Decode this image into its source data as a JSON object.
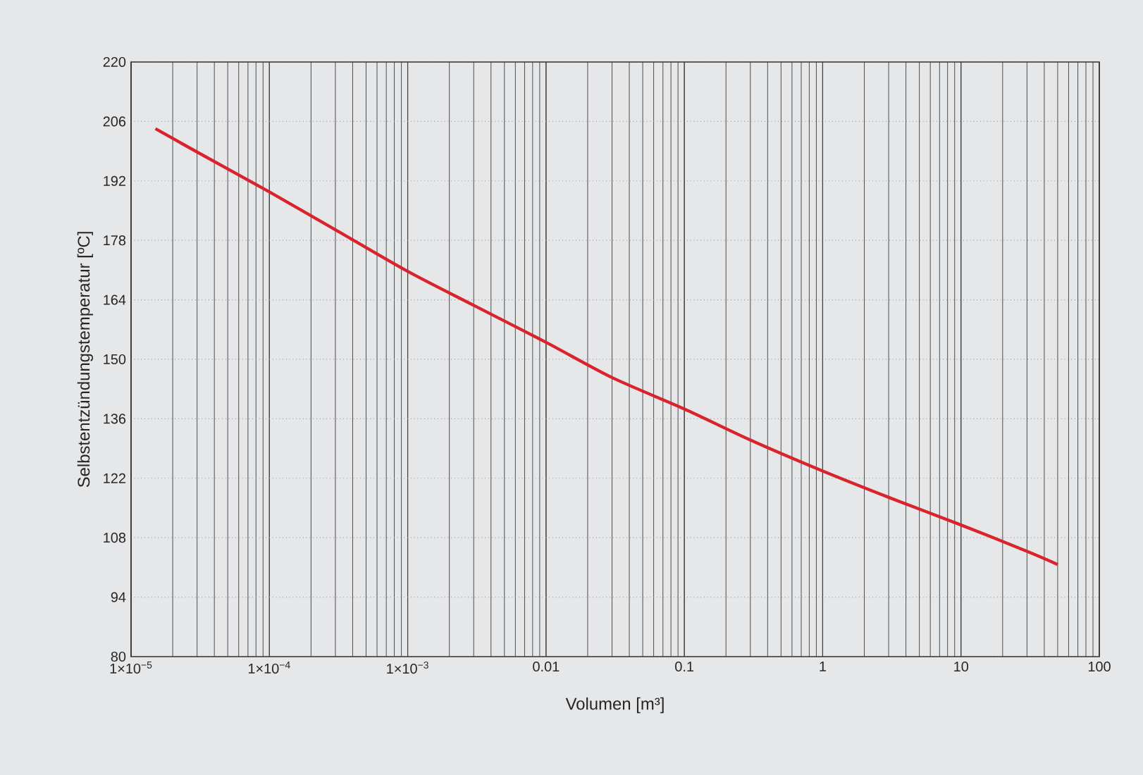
{
  "chart_data": {
    "type": "line",
    "xlabel": "Volumen [m³]",
    "ylabel": "Selbstentzündungstemperatur [ºC]",
    "log": "x",
    "grid": true,
    "marker": "none",
    "line_style": "solid",
    "xlim": [
      1e-05,
      100
    ],
    "ylim": [
      80,
      220
    ],
    "xticks": [
      {
        "value": 1e-05,
        "label": "1×10$^{−5}$"
      },
      {
        "value": 0.0001,
        "label": "1×10$^{−4}$"
      },
      {
        "value": 0.001,
        "label": "1×10$^{−3}$"
      },
      0.01,
      0.1,
      1,
      10,
      100
    ],
    "yticks": [
      80,
      94,
      108,
      122,
      136,
      150,
      164,
      178,
      192,
      206,
      220
    ],
    "series": [
      {
        "color": "#d9232d",
        "x": [
          1.5e-05,
          3e-05,
          0.0001,
          0.0003,
          0.001,
          0.003,
          0.01,
          0.03,
          0.1,
          0.3,
          1,
          3,
          10,
          30,
          50
        ],
        "values": [
          204.3,
          198.8,
          189.4,
          180.5,
          170.7,
          162.7,
          154,
          145.7,
          138.3,
          131,
          123.7,
          117.5,
          111,
          104.8,
          101.7
        ]
      }
    ]
  }
}
